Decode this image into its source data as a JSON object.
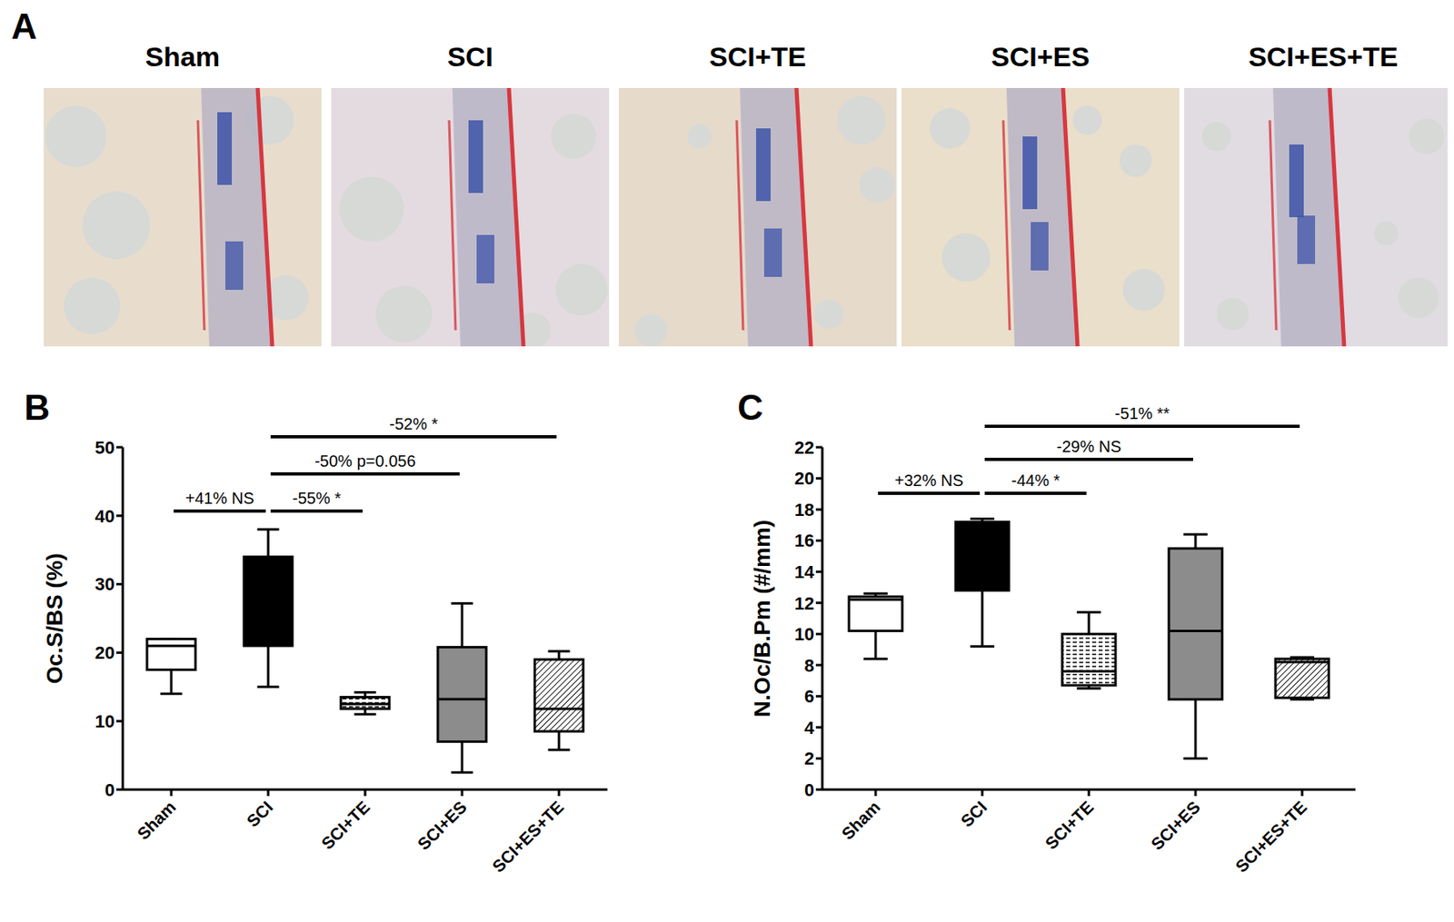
{
  "chart_data": [
    {
      "type": "image",
      "panel_label": "A",
      "titles": [
        "Sham",
        "SCI",
        "SCI+TE",
        "SCI+ES",
        "SCI+ES+TE"
      ]
    },
    {
      "type": "box",
      "panel_label": "B",
      "y_label": "Oc.S/BS (%)",
      "categories": [
        "Sham",
        "SCI",
        "SCI+TE",
        "SCI+ES",
        "SCI+ES+TE"
      ],
      "values": [
        {
          "min": 14,
          "q1": 17.5,
          "median": 21,
          "q3": 22,
          "max": 22
        },
        {
          "min": 15,
          "q1": 21,
          "median": 33,
          "q3": 34,
          "max": 38
        },
        {
          "min": 11,
          "q1": 11.8,
          "median": 12.5,
          "q3": 13.5,
          "max": 14.2
        },
        {
          "min": 2.5,
          "q1": 7,
          "median": 13.2,
          "q3": 20.8,
          "max": 27.2
        },
        {
          "min": 5.8,
          "q1": 8.5,
          "median": 11.8,
          "q3": 19,
          "max": 20.2
        }
      ],
      "colors": [
        "#ffffff",
        "#000000",
        "#ffffff",
        "#8c8c8c",
        "#ffffff"
      ],
      "ylim": [
        0,
        50
      ],
      "yticks": [
        0,
        10,
        20,
        30,
        40,
        50
      ],
      "grid": false,
      "annotations": [
        {
          "from": "Sham",
          "to": "SCI",
          "text": "+41% NS"
        },
        {
          "from": "SCI",
          "to": "SCI+TE",
          "text": "-55% *"
        },
        {
          "from": "SCI",
          "to": "SCI+ES",
          "text": "-50% p=0.056"
        },
        {
          "from": "SCI",
          "to": "SCI+ES+TE",
          "text": "-52% *"
        }
      ]
    },
    {
      "type": "box",
      "panel_label": "C",
      "y_label": "N.Oc/B.Pm (#/mm)",
      "categories": [
        "Sham",
        "SCI",
        "SCI+TE",
        "SCI+ES",
        "SCI+ES+TE"
      ],
      "values": [
        {
          "min": 8.4,
          "q1": 10.2,
          "median": 12.2,
          "q3": 12.4,
          "max": 12.6
        },
        {
          "min": 9.2,
          "q1": 12.8,
          "median": 17,
          "q3": 17.2,
          "max": 17.4
        },
        {
          "min": 6.5,
          "q1": 6.7,
          "median": 7.6,
          "q3": 10,
          "max": 11.4
        },
        {
          "min": 2,
          "q1": 5.8,
          "median": 10.2,
          "q3": 15.5,
          "max": 16.4
        },
        {
          "min": 5.8,
          "q1": 5.9,
          "median": 8.2,
          "q3": 8.4,
          "max": 8.5
        }
      ],
      "colors": [
        "#ffffff",
        "#000000",
        "#ffffff",
        "#8c8c8c",
        "#ffffff"
      ],
      "ylim": [
        0,
        22
      ],
      "yticks": [
        0,
        2,
        4,
        6,
        8,
        10,
        12,
        14,
        16,
        18,
        20,
        22
      ],
      "grid": false,
      "annotations": [
        {
          "from": "Sham",
          "to": "SCI",
          "text": "+32% NS"
        },
        {
          "from": "SCI",
          "to": "SCI+TE",
          "text": "-44% *"
        },
        {
          "from": "SCI",
          "to": "SCI+ES",
          "text": "-29% NS"
        },
        {
          "from": "SCI",
          "to": "SCI+ES+TE",
          "text": "-51% **"
        }
      ]
    }
  ]
}
